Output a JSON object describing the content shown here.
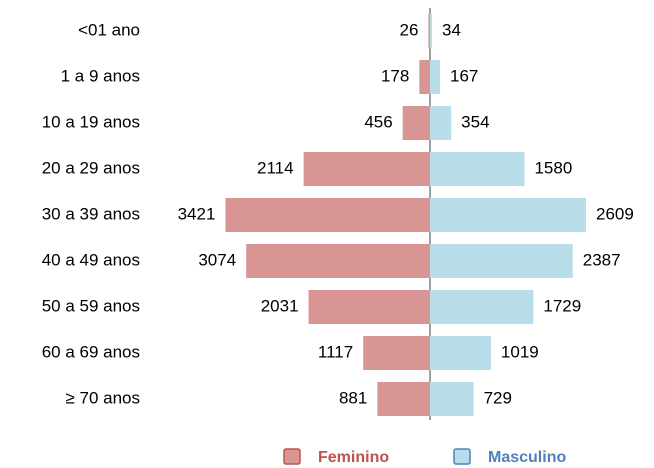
{
  "chart_data": {
    "type": "pyramid",
    "categories": [
      "<01 ano",
      "1 a 9 anos",
      "10 a 19 anos",
      "20 a 29 anos",
      "30 a 39 anos",
      "40 a 49 anos",
      "50 a 59 anos",
      "60 a 69 anos",
      "≥ 70 anos"
    ],
    "series": [
      {
        "name": "Feminino",
        "color": "#d99594",
        "values": [
          26,
          178,
          456,
          2114,
          3421,
          3074,
          2031,
          1117,
          881
        ]
      },
      {
        "name": "Masculino",
        "color": "#b7dde8",
        "values": [
          34,
          167,
          354,
          1580,
          2609,
          2387,
          1729,
          1019,
          729
        ]
      }
    ],
    "legend": "bottom"
  }
}
